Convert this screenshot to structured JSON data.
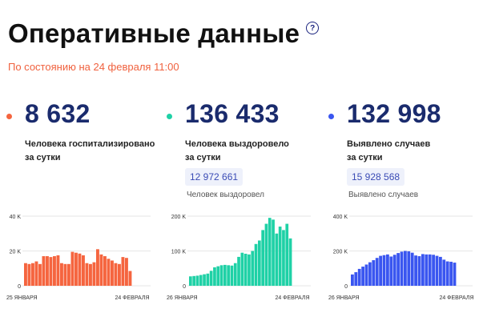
{
  "header": {
    "title": "Оперативные данные",
    "help_icon": "question-circle-icon",
    "subtitle": "По состоянию на 24 февраля 11:00"
  },
  "colors": {
    "hospitalized": "#f5653f",
    "recovered": "#1fd1a6",
    "cases": "#3a56f0",
    "number": "#1a2b6d",
    "subtitle": "#f0613e"
  },
  "cards": [
    {
      "value": "8 632",
      "label_line1": "Человека госпитализировано",
      "label_line2": "за сутки",
      "total_value": "",
      "total_label": ""
    },
    {
      "value": "136 433",
      "label_line1": "Человека выздоровело",
      "label_line2": "за сутки",
      "total_value": "12 972 661",
      "total_label": "Человек выздоровел"
    },
    {
      "value": "132 998",
      "label_line1": "Выявлено случаев",
      "label_line2": "за сутки",
      "total_value": "15 928 568",
      "total_label": "Выявлено случаев"
    }
  ],
  "chart_data": [
    {
      "type": "bar",
      "color": "#f5653f",
      "ylim": [
        0,
        40000
      ],
      "yticks": [
        "0",
        "20 K",
        "40 K"
      ],
      "ytick_values": [
        0,
        20000,
        40000
      ],
      "x_start_label": "25 ЯНВАРЯ",
      "x_end_label": "24 ФЕВРАЛЯ",
      "values": [
        13000,
        12500,
        13000,
        14000,
        12500,
        17000,
        17000,
        16500,
        17000,
        17500,
        13000,
        12500,
        12500,
        19500,
        19000,
        18500,
        17500,
        13000,
        12500,
        13500,
        21000,
        18000,
        17000,
        15500,
        14500,
        13000,
        12500,
        16500,
        16000,
        8500
      ]
    },
    {
      "type": "bar",
      "color": "#1fd1a6",
      "ylim": [
        0,
        200000
      ],
      "yticks": [
        "0",
        "100 K",
        "200 K"
      ],
      "ytick_values": [
        0,
        100000,
        200000
      ],
      "x_start_label": "26 ЯНВАРЯ",
      "x_end_label": "24 ФЕВРАЛЯ",
      "values": [
        27000,
        28000,
        29000,
        31000,
        33000,
        35000,
        43000,
        53000,
        56000,
        59000,
        60000,
        59000,
        58000,
        65000,
        83000,
        95000,
        92000,
        90000,
        100000,
        120000,
        130000,
        160000,
        178000,
        195000,
        190000,
        150000,
        170000,
        160000,
        178000,
        136000
      ]
    },
    {
      "type": "bar",
      "color": "#3a56f0",
      "ylim": [
        0,
        400000
      ],
      "yticks": [
        "0",
        "200 K",
        "400 K"
      ],
      "ytick_values": [
        0,
        200000,
        400000
      ],
      "x_start_label": "26 ЯНВАРЯ",
      "x_end_label": "24 ФЕВРАЛЯ",
      "values": [
        65000,
        78000,
        97000,
        110000,
        122000,
        135000,
        147000,
        160000,
        172000,
        176000,
        180000,
        168000,
        178000,
        188000,
        196000,
        200000,
        198000,
        190000,
        174000,
        170000,
        182000,
        180000,
        180000,
        178000,
        172000,
        166000,
        150000,
        140000,
        138000,
        133000
      ]
    }
  ]
}
